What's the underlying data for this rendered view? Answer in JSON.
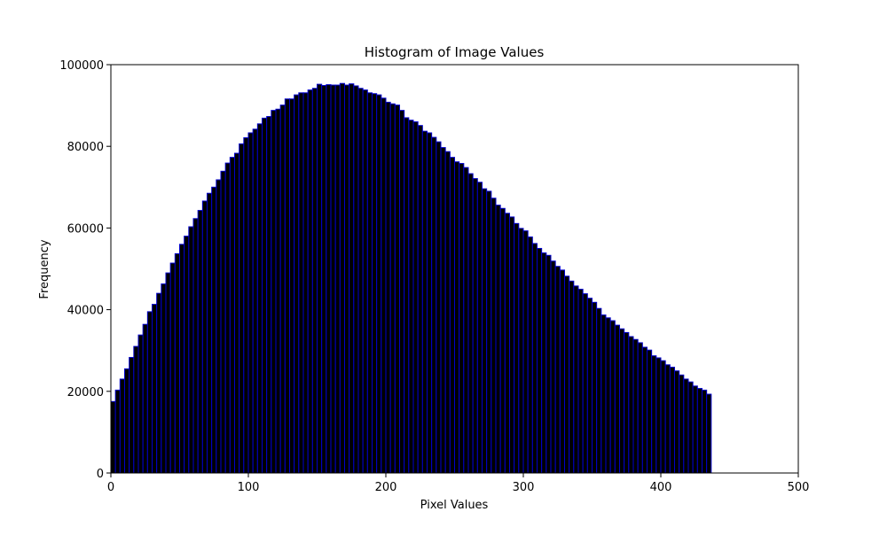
{
  "chart_data": {
    "type": "bar",
    "title": "Histogram of Image Values",
    "xlabel": "Pixel Values",
    "ylabel": "Frequency",
    "xlim": [
      0,
      500
    ],
    "ylim": [
      0,
      100000
    ],
    "xticks": [
      0,
      100,
      200,
      300,
      400,
      500
    ],
    "yticks": [
      0,
      20000,
      40000,
      60000,
      80000,
      100000
    ],
    "grid": false,
    "bin_edges_start": 0,
    "bin_width": 3.3333,
    "bar_fill": "#000000",
    "bar_edge": "#0000cc",
    "values": [
      17500,
      20300,
      23000,
      25500,
      28300,
      31000,
      33800,
      36400,
      39500,
      41300,
      44000,
      46300,
      49000,
      51400,
      53700,
      56000,
      58000,
      60300,
      62300,
      64300,
      66600,
      68500,
      70000,
      71800,
      73900,
      75900,
      77300,
      78300,
      80600,
      82100,
      83300,
      84200,
      85500,
      86900,
      87300,
      88800,
      89100,
      90100,
      91600,
      91600,
      92600,
      93100,
      93100,
      93800,
      94200,
      95200,
      94900,
      95100,
      95000,
      95000,
      95400,
      95000,
      95300,
      94800,
      94200,
      93800,
      93100,
      92900,
      92600,
      91800,
      90800,
      90400,
      90100,
      88800,
      87000,
      86400,
      86000,
      85100,
      83700,
      83300,
      82200,
      81100,
      79700,
      78700,
      77300,
      76200,
      75800,
      74800,
      73300,
      72100,
      71200,
      69600,
      69000,
      67300,
      65600,
      64800,
      63600,
      62700,
      61100,
      59900,
      59300,
      57800,
      56200,
      55000,
      53900,
      53300,
      51900,
      50600,
      49700,
      48200,
      47000,
      45800,
      45000,
      43900,
      42800,
      41800,
      40300,
      38700,
      38000,
      37300,
      36200,
      35300,
      34400,
      33400,
      32700,
      31900,
      30800,
      30100,
      28700,
      28200,
      27500,
      26500,
      25900,
      25000,
      24000,
      23000,
      22300,
      21300,
      20700,
      20300,
      19300
    ]
  }
}
